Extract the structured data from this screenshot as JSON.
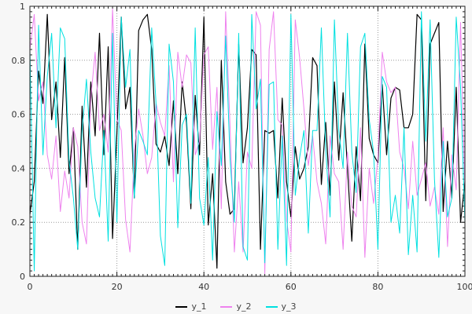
{
  "figure": {
    "background": "#f7f7f7",
    "plot_background": "#ffffff",
    "border_color": "#222222",
    "grid_color": "#999999",
    "tick_color": "#222222",
    "label_color": "#333333"
  },
  "chart_data": {
    "type": "line",
    "title": "",
    "xlabel": "",
    "ylabel": "",
    "xlim": [
      0,
      100
    ],
    "ylim": [
      0,
      1
    ],
    "x_ticks": [
      0,
      20,
      40,
      60,
      80,
      100
    ],
    "y_ticks": [
      0,
      0.2,
      0.4,
      0.6,
      0.8,
      1
    ],
    "x_tick_labels": [
      "0",
      "20",
      "40",
      "60",
      "80",
      "100"
    ],
    "y_tick_labels": [
      "0",
      "0.2",
      "0.4",
      "0.6",
      "0.8",
      "1"
    ],
    "x_minor_step": 1,
    "y_minor_step": 0.02,
    "grid": "dotted",
    "legend_position": "bottom-center",
    "x": [
      0,
      1,
      2,
      3,
      4,
      5,
      6,
      7,
      8,
      9,
      10,
      11,
      12,
      13,
      14,
      15,
      16,
      17,
      18,
      19,
      20,
      21,
      22,
      23,
      24,
      25,
      26,
      27,
      28,
      29,
      30,
      31,
      32,
      33,
      34,
      35,
      36,
      37,
      38,
      39,
      40,
      41,
      42,
      43,
      44,
      45,
      46,
      47,
      48,
      49,
      50,
      51,
      52,
      53,
      54,
      55,
      56,
      57,
      58,
      59,
      60,
      61,
      62,
      63,
      64,
      65,
      66,
      67,
      68,
      69,
      70,
      71,
      72,
      73,
      74,
      75,
      76,
      77,
      78,
      79,
      80,
      81,
      82,
      83,
      84,
      85,
      86,
      87,
      88,
      89,
      90,
      91,
      92,
      93,
      94,
      95,
      96,
      97,
      98,
      99,
      100
    ],
    "series": [
      {
        "name": "y_1",
        "color": "#000000",
        "values": [
          0.23,
          0.35,
          0.76,
          0.64,
          0.97,
          0.58,
          0.72,
          0.44,
          0.81,
          0.38,
          0.55,
          0.1,
          0.63,
          0.33,
          0.72,
          0.52,
          0.9,
          0.45,
          0.85,
          0.14,
          0.53,
          0.96,
          0.62,
          0.7,
          0.29,
          0.91,
          0.95,
          0.97,
          0.84,
          0.49,
          0.46,
          0.52,
          0.41,
          0.65,
          0.38,
          0.72,
          0.57,
          0.25,
          0.67,
          0.45,
          0.96,
          0.19,
          0.38,
          0.03,
          0.8,
          0.35,
          0.23,
          0.25,
          0.86,
          0.42,
          0.55,
          0.84,
          0.82,
          0.1,
          0.54,
          0.53,
          0.54,
          0.29,
          0.66,
          0.35,
          0.22,
          0.48,
          0.36,
          0.4,
          0.48,
          0.81,
          0.78,
          0.34,
          0.57,
          0.3,
          0.72,
          0.43,
          0.68,
          0.4,
          0.13,
          0.48,
          0.28,
          0.86,
          0.51,
          0.45,
          0.42,
          0.71,
          0.45,
          0.66,
          0.7,
          0.69,
          0.55,
          0.55,
          0.6,
          0.97,
          0.95,
          0.28,
          0.86,
          0.9,
          0.94,
          0.24,
          0.5,
          0.29,
          0.7,
          0.2,
          0.35
        ]
      },
      {
        "name": "y_2",
        "color": "#ee82ee",
        "values": [
          0.84,
          0.97,
          0.65,
          0.72,
          0.45,
          0.36,
          0.52,
          0.24,
          0.39,
          0.29,
          0.55,
          0.48,
          0.2,
          0.12,
          0.66,
          0.83,
          0.54,
          0.6,
          0.46,
          0.99,
          0.58,
          0.54,
          0.21,
          0.09,
          0.46,
          0.62,
          0.52,
          0.38,
          0.44,
          0.64,
          0.57,
          0.52,
          0.78,
          0.35,
          0.83,
          0.7,
          0.82,
          0.79,
          0.45,
          0.5,
          0.82,
          0.85,
          0.47,
          0.7,
          0.25,
          0.98,
          0.56,
          0.09,
          0.35,
          0.09,
          0.46,
          0.4,
          0.98,
          0.93,
          0.01,
          0.84,
          0.98,
          0.58,
          0.56,
          0.21,
          0.09,
          0.95,
          0.81,
          0.62,
          0.41,
          0.52,
          0.35,
          0.27,
          0.12,
          0.52,
          0.38,
          0.35,
          0.1,
          0.46,
          0.26,
          0.22,
          0.55,
          0.07,
          0.4,
          0.27,
          0.44,
          0.83,
          0.72,
          0.68,
          0.7,
          0.46,
          0.4,
          0.25,
          0.5,
          0.3,
          0.36,
          0.42,
          0.26,
          0.33,
          0.23,
          0.55,
          0.11,
          0.45,
          0.32,
          0.94,
          0.32
        ]
      },
      {
        "name": "y_3",
        "color": "#00e0e0",
        "values": [
          0.84,
          0.02,
          0.93,
          0.45,
          0.74,
          0.9,
          0.55,
          0.92,
          0.88,
          0.43,
          0.29,
          0.1,
          0.54,
          0.73,
          0.46,
          0.29,
          0.22,
          0.54,
          0.13,
          0.9,
          0.2,
          0.96,
          0.7,
          0.84,
          0.29,
          0.54,
          0.5,
          0.45,
          0.92,
          0.64,
          0.15,
          0.04,
          0.86,
          0.72,
          0.18,
          0.56,
          0.6,
          0.27,
          0.92,
          0.29,
          0.19,
          0.44,
          0.06,
          0.61,
          0.41,
          0.89,
          0.44,
          0.2,
          0.9,
          0.11,
          0.06,
          0.97,
          0.62,
          0.73,
          0.05,
          0.71,
          0.72,
          0.1,
          0.52,
          0.04,
          0.97,
          0.3,
          0.44,
          0.54,
          0.16,
          0.54,
          0.54,
          0.92,
          0.47,
          0.22,
          0.95,
          0.54,
          0.4,
          0.9,
          0.46,
          0.31,
          0.85,
          0.9,
          0.58,
          0.46,
          0.1,
          0.74,
          0.7,
          0.2,
          0.3,
          0.16,
          0.55,
          0.08,
          0.3,
          0.09,
          0.98,
          0.5,
          0.95,
          0.36,
          0.07,
          0.5,
          0.22,
          0.29,
          0.96,
          0.7,
          0.2
        ]
      }
    ]
  }
}
